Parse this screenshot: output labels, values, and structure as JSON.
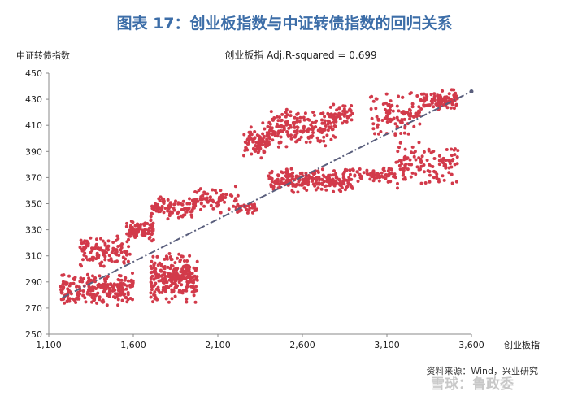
{
  "figure_title": "图表 17：创业板指数与中证转债指数的回归关系",
  "source_text": "资料来源：Wind，兴业研究",
  "watermark_text": "雪球：鲁政委",
  "colors": {
    "title": "#3d6ea8",
    "points": "#d23a4a",
    "regression_line": "#5a5f7d",
    "axis": "#888888"
  },
  "chart_data": {
    "type": "scatter",
    "title": "创业板指 Adj.R-squared = 0.699",
    "xlabel": "创业板指",
    "ylabel": "中证转债指数",
    "xlim": [
      1100,
      3600
    ],
    "ylim": [
      250,
      450
    ],
    "xticks": [
      1100,
      1600,
      2100,
      2600,
      3100,
      3600
    ],
    "xtick_labels": [
      "1,100",
      "1,600",
      "2,100",
      "2,600",
      "3,100",
      "3,600"
    ],
    "yticks": [
      250,
      270,
      290,
      310,
      330,
      350,
      370,
      390,
      410,
      430,
      450
    ],
    "ytick_labels": [
      "250",
      "270",
      "290",
      "310",
      "330",
      "350",
      "370",
      "390",
      "410",
      "430",
      "450"
    ],
    "grid": false,
    "regression_line": {
      "x": [
        1180,
        3600
      ],
      "y": [
        278,
        436
      ]
    },
    "point_clusters": [
      {
        "x_range": [
          1170,
          1600
        ],
        "y_range": [
          272,
          298
        ],
        "count": 230
      },
      {
        "x_range": [
          1700,
          1980
        ],
        "y_range": [
          273,
          314
        ],
        "count": 260
      },
      {
        "x_range": [
          1280,
          1580
        ],
        "y_range": [
          300,
          326
        ],
        "count": 110
      },
      {
        "x_range": [
          1560,
          1720
        ],
        "y_range": [
          320,
          338
        ],
        "count": 90
      },
      {
        "x_range": [
          1700,
          1960
        ],
        "y_range": [
          338,
          356
        ],
        "count": 90
      },
      {
        "x_range": [
          1950,
          2220
        ],
        "y_range": [
          340,
          366
        ],
        "count": 80
      },
      {
        "x_range": [
          2200,
          2350
        ],
        "y_range": [
          340,
          352
        ],
        "count": 30
      },
      {
        "x_range": [
          2400,
          2900
        ],
        "y_range": [
          358,
          377
        ],
        "count": 220
      },
      {
        "x_range": [
          2900,
          3150
        ],
        "y_range": [
          366,
          378
        ],
        "count": 60
      },
      {
        "x_range": [
          3150,
          3520
        ],
        "y_range": [
          360,
          398
        ],
        "count": 120
      },
      {
        "x_range": [
          2250,
          2400
        ],
        "y_range": [
          384,
          412
        ],
        "count": 90
      },
      {
        "x_range": [
          2400,
          2800
        ],
        "y_range": [
          392,
          425
        ],
        "count": 170
      },
      {
        "x_range": [
          2750,
          2900
        ],
        "y_range": [
          408,
          428
        ],
        "count": 50
      },
      {
        "x_range": [
          3000,
          3300
        ],
        "y_range": [
          400,
          436
        ],
        "count": 100
      },
      {
        "x_range": [
          3300,
          3520
        ],
        "y_range": [
          420,
          438
        ],
        "count": 90
      }
    ]
  }
}
